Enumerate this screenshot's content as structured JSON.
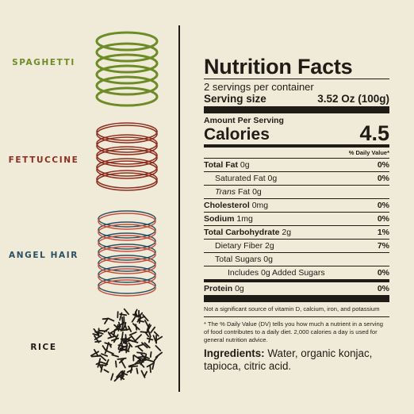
{
  "variants": [
    {
      "label": "SPAGHETTI",
      "color": "#6d8c28"
    },
    {
      "label": "FETTUCCINE",
      "color": "#8e2e1f"
    },
    {
      "label": "ANGEL HAIR",
      "color": "#2b4f63"
    },
    {
      "label": "RICE",
      "color": "#1f1c17"
    }
  ],
  "nutrition": {
    "title": "Nutrition Facts",
    "servings_per_container": "2 servings per container",
    "serving_size_label": "Serving size",
    "serving_size_value": "3.52 Oz (100g)",
    "amount_per_serving": "Amount Per Serving",
    "calories_label": "Calories",
    "calories_value": "4.5",
    "daily_value_header": "% Daily Value*",
    "rows": [
      {
        "label": "Total Fat",
        "amount": "0g",
        "dv": "0%"
      },
      {
        "label": "Saturated Fat",
        "amount": "0g",
        "dv": "0%"
      },
      {
        "label": "Trans",
        "amount": "Fat 0g",
        "dv": ""
      },
      {
        "label": "Cholesterol",
        "amount": "0mg",
        "dv": "0%"
      },
      {
        "label": "Sodium",
        "amount": "1mg",
        "dv": "0%"
      },
      {
        "label": "Total Carbohydrate",
        "amount": "2g",
        "dv": "1%"
      },
      {
        "label": "Dietary Fiber",
        "amount": "2g",
        "dv": "7%"
      },
      {
        "label": "Total Sugars",
        "amount": "0g",
        "dv": ""
      },
      {
        "label": "Includes 0g Added Sugars",
        "amount": "",
        "dv": "0%"
      },
      {
        "label": "Protein",
        "amount": "0g",
        "dv": "0%"
      }
    ],
    "not_significant": "Not a significant source of vitamin D, calcium, iron, and potassium",
    "footnote": "* The % Daily Value (DV) tells you how much a nutrient in a serving of food contributes to a daily diet. 2,000 calories a day is used for general nutrition advice.",
    "ingredients_label": "Ingredients:",
    "ingredients_text": "Water, organic konjac, tapioca, citric acid."
  }
}
